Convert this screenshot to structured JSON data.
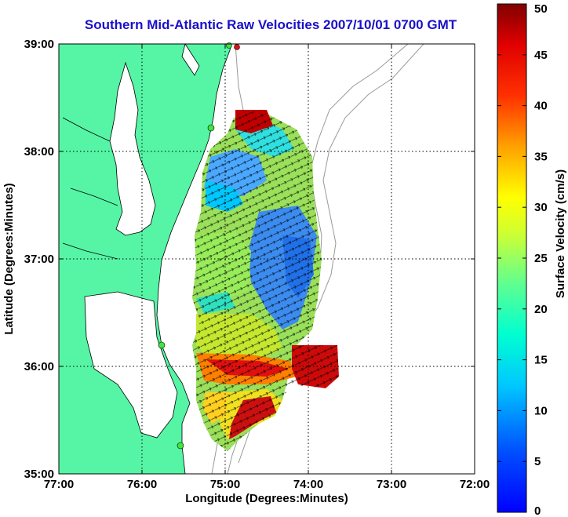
{
  "title": "Southern Mid-Atlantic Raw Velocities 2007/10/01 0700 GMT",
  "map": {
    "xlabel": "Longitude (Degrees:Minutes)",
    "ylabel": "Latitude (Degrees:Minutes)",
    "lon_ticks": [
      "77:00",
      "76:00",
      "75:00",
      "74:00",
      "73:00",
      "72:00"
    ],
    "lat_ticks": [
      "39:00",
      "38:00",
      "37:00",
      "36:00",
      "35:00"
    ],
    "lon_range": [
      -77,
      -72
    ],
    "lat_range": [
      35,
      39
    ],
    "grid": true,
    "land_color": "#55f5a5",
    "station_color": "#3ee63e"
  },
  "colorbar": {
    "label": "Surface Velocity (cm/s)",
    "ticks": [
      "0",
      "5",
      "10",
      "15",
      "20",
      "25",
      "30",
      "35",
      "40",
      "45",
      "50"
    ],
    "min": 0,
    "max": 50,
    "colormap": "jet"
  }
}
